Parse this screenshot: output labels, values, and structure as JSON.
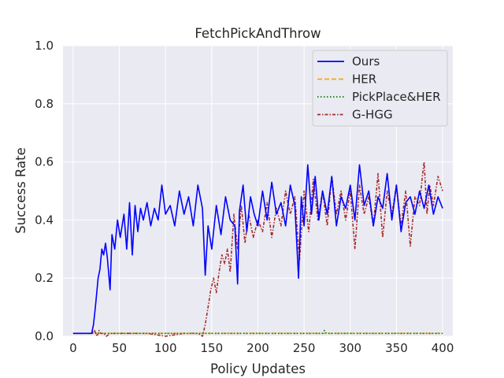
{
  "chart_data": {
    "type": "line",
    "title": "FetchPickAndThrow",
    "xlabel": "Policy Updates",
    "ylabel": "Success Rate",
    "xlim": [
      -11,
      411
    ],
    "ylim": [
      0.0,
      1.0
    ],
    "xticks": [
      0,
      50,
      100,
      150,
      200,
      250,
      300,
      350,
      400
    ],
    "yticks": [
      0.0,
      0.2,
      0.4,
      0.6,
      0.8,
      1.0
    ],
    "xtick_labels": [
      "0",
      "50",
      "100",
      "150",
      "200",
      "250",
      "300",
      "350",
      "400"
    ],
    "ytick_labels": [
      "0.0",
      "0.2",
      "0.4",
      "0.6",
      "0.8",
      "1.0"
    ],
    "grid": true,
    "legend_position": "top-right",
    "series": [
      {
        "name": "Ours",
        "color": "#0000ff",
        "style": "solid",
        "x": [
          0,
          10,
          20,
          22,
          24,
          27,
          29,
          31,
          33,
          35,
          37,
          40,
          42,
          45,
          48,
          51,
          55,
          58,
          61,
          64,
          67,
          70,
          73,
          76,
          80,
          84,
          88,
          92,
          96,
          100,
          105,
          110,
          115,
          120,
          125,
          130,
          135,
          140,
          143,
          146,
          150,
          155,
          160,
          165,
          170,
          175,
          178,
          180,
          184,
          188,
          192,
          196,
          200,
          205,
          210,
          215,
          220,
          225,
          230,
          235,
          240,
          244,
          247,
          250,
          254,
          258,
          262,
          266,
          270,
          275,
          280,
          285,
          290,
          295,
          300,
          305,
          310,
          315,
          320,
          325,
          330,
          335,
          340,
          345,
          350,
          355,
          360,
          365,
          370,
          375,
          380,
          385,
          390,
          395,
          400
        ],
        "y": [
          0.01,
          0.01,
          0.01,
          0.04,
          0.1,
          0.2,
          0.23,
          0.3,
          0.28,
          0.32,
          0.27,
          0.16,
          0.35,
          0.3,
          0.4,
          0.34,
          0.42,
          0.3,
          0.46,
          0.28,
          0.45,
          0.36,
          0.44,
          0.4,
          0.46,
          0.38,
          0.44,
          0.4,
          0.52,
          0.42,
          0.45,
          0.38,
          0.5,
          0.42,
          0.48,
          0.38,
          0.52,
          0.44,
          0.21,
          0.38,
          0.3,
          0.45,
          0.35,
          0.48,
          0.4,
          0.38,
          0.18,
          0.43,
          0.52,
          0.36,
          0.48,
          0.42,
          0.38,
          0.5,
          0.4,
          0.53,
          0.42,
          0.46,
          0.38,
          0.52,
          0.45,
          0.2,
          0.48,
          0.38,
          0.59,
          0.42,
          0.55,
          0.4,
          0.5,
          0.42,
          0.55,
          0.38,
          0.48,
          0.44,
          0.52,
          0.4,
          0.59,
          0.45,
          0.5,
          0.38,
          0.48,
          0.44,
          0.56,
          0.4,
          0.52,
          0.36,
          0.46,
          0.48,
          0.42,
          0.5,
          0.44,
          0.52,
          0.42,
          0.48,
          0.44
        ]
      },
      {
        "name": "HER",
        "color": "#ffa500",
        "style": "dashed",
        "x": [
          0,
          100,
          200,
          300,
          400
        ],
        "y": [
          0.01,
          0.01,
          0.01,
          0.01,
          0.01
        ]
      },
      {
        "name": "PickPlace&HER",
        "color": "#008000",
        "style": "dotted",
        "x": [
          0,
          100,
          200,
          270,
          272,
          274,
          300,
          400
        ],
        "y": [
          0.01,
          0.01,
          0.01,
          0.01,
          0.02,
          0.01,
          0.01,
          0.01
        ]
      },
      {
        "name": "G-HGG",
        "color": "#a52a2a",
        "style": "dashed-dotted",
        "x": [
          0,
          20,
          23,
          26,
          28,
          30,
          33,
          36,
          40,
          60,
          80,
          100,
          120,
          135,
          140,
          143,
          146,
          149,
          152,
          155,
          158,
          161,
          164,
          167,
          170,
          174,
          178,
          182,
          186,
          190,
          195,
          200,
          205,
          210,
          215,
          220,
          225,
          230,
          235,
          240,
          245,
          250,
          255,
          260,
          265,
          270,
          275,
          280,
          285,
          290,
          295,
          300,
          305,
          310,
          315,
          320,
          325,
          330,
          335,
          340,
          345,
          350,
          355,
          360,
          365,
          370,
          375,
          378,
          380,
          383,
          386,
          390,
          395,
          400
        ],
        "y": [
          0.01,
          0.01,
          0.02,
          0.0,
          0.02,
          0.01,
          0.01,
          0.0,
          0.01,
          0.01,
          0.01,
          0.0,
          0.01,
          0.01,
          0.0,
          0.04,
          0.1,
          0.16,
          0.2,
          0.15,
          0.22,
          0.28,
          0.25,
          0.3,
          0.22,
          0.42,
          0.3,
          0.45,
          0.32,
          0.42,
          0.34,
          0.4,
          0.36,
          0.46,
          0.34,
          0.44,
          0.38,
          0.5,
          0.42,
          0.48,
          0.26,
          0.5,
          0.36,
          0.54,
          0.4,
          0.5,
          0.38,
          0.55,
          0.42,
          0.5,
          0.4,
          0.5,
          0.3,
          0.52,
          0.42,
          0.48,
          0.38,
          0.56,
          0.34,
          0.5,
          0.42,
          0.52,
          0.38,
          0.5,
          0.31,
          0.48,
          0.45,
          0.55,
          0.6,
          0.42,
          0.52,
          0.45,
          0.55,
          0.5
        ]
      }
    ]
  }
}
